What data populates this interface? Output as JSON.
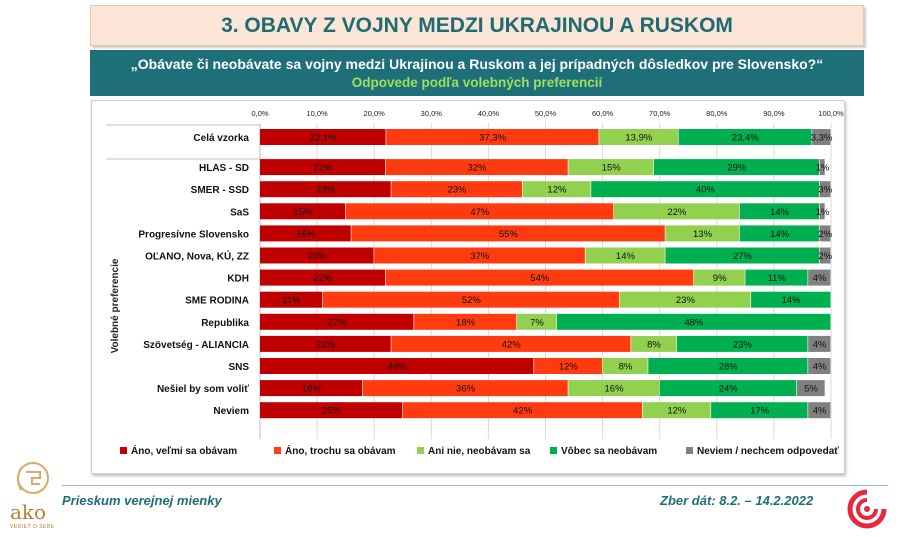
{
  "title": "3. OBAVY Z VOJNY MEDZI UKRAJINOU A RUSKOM",
  "question": "„Obávate či neobávate sa vojny medzi Ukrajinou a Ruskom a jej prípadných dôsledkov pre Slovensko?“",
  "subtitle": "Odpovede podľa volebných preferencií",
  "footer": {
    "left": "Prieskum verejnej mienky",
    "right": "Zber dát: 8.2. – 14.2.2022"
  },
  "logo": {
    "name": "ako",
    "tagline": "VEDIEŤ O SEBE"
  },
  "colors": [
    "#c00000",
    "#ff3b0f",
    "#92d050",
    "#00b050",
    "#808080"
  ],
  "chart_data": {
    "type": "bar",
    "orientation": "horizontal",
    "stacked": true,
    "title": "„Obávate či neobávate sa vojny medzi Ukrajinou a Ruskom a jej prípadných dôsledkov pre Slovensko?“",
    "ylabel": "Volebné preferencie",
    "xlim": [
      0,
      100
    ],
    "xticks": [
      "0,0%",
      "10,0%",
      "20,0%",
      "30,0%",
      "40,0%",
      "50,0%",
      "60,0%",
      "70,0%",
      "80,0%",
      "90,0%",
      "100,0%"
    ],
    "categories": [
      "Celá vzorka",
      "HLAS - SD",
      "SMER - SSD",
      "SaS",
      "Progresívne Slovensko",
      "OĽANO, Nova, KÚ, ZZ",
      "KDH",
      "SME RODINA",
      "Republika",
      "Szövetség - ALIANCIA",
      "SNS",
      "Nešiel by som voliť",
      "Neviem"
    ],
    "series": [
      {
        "name": "Áno, veľmi sa obávam",
        "values": [
          22.1,
          22,
          23,
          15,
          16,
          20,
          22,
          11,
          27,
          23,
          48,
          18,
          25
        ],
        "labels": [
          "22,1%",
          "22%",
          "23%",
          "15%",
          "16%",
          "20%",
          "22%",
          "11%",
          "27%",
          "23%",
          "48%",
          "18%",
          "25%"
        ]
      },
      {
        "name": "Áno, trochu sa obávam",
        "values": [
          37.3,
          32,
          23,
          47,
          55,
          37,
          54,
          52,
          18,
          42,
          12,
          36,
          42
        ],
        "labels": [
          "37,3%",
          "32%",
          "23%",
          "47%",
          "55%",
          "37%",
          "54%",
          "52%",
          "18%",
          "42%",
          "12%",
          "36%",
          "42%"
        ]
      },
      {
        "name": "Ani nie, neobávam sa",
        "values": [
          13.9,
          15,
          12,
          22,
          13,
          14,
          9,
          23,
          7,
          8,
          8,
          16,
          12
        ],
        "labels": [
          "13,9%",
          "15%",
          "12%",
          "22%",
          "13%",
          "14%",
          "9%",
          "23%",
          "7%",
          "8%",
          "8%",
          "16%",
          "12%"
        ]
      },
      {
        "name": "Vôbec sa neobávam",
        "values": [
          23.4,
          29,
          40,
          14,
          14,
          27,
          11,
          14,
          48,
          23,
          28,
          24,
          17
        ],
        "labels": [
          "23,4%",
          "29%",
          "40%",
          "14%",
          "14%",
          "27%",
          "11%",
          "14%",
          "48%",
          "23%",
          "28%",
          "24%",
          "17%"
        ]
      },
      {
        "name": "Neviem / nechcem odpovedať",
        "values": [
          3.3,
          1,
          3,
          1,
          2,
          2,
          4,
          0,
          0,
          4,
          4,
          5,
          4
        ],
        "labels": [
          "3,3%",
          "1%",
          "3%",
          "1%",
          "2%",
          "2%",
          "4%",
          "",
          "",
          "4%",
          "4%",
          "5%",
          "4%"
        ]
      }
    ],
    "legend_position": "bottom"
  }
}
